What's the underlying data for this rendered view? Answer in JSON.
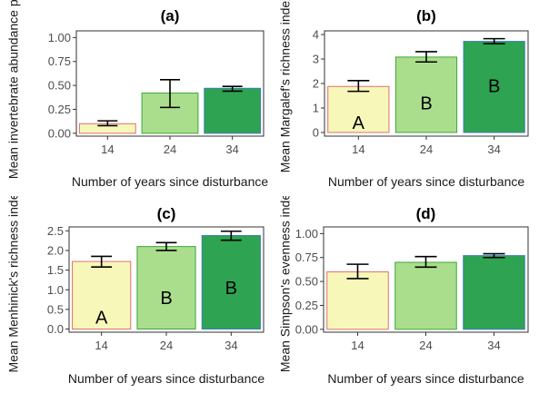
{
  "colors": {
    "c14": "#f7f7b9",
    "c24": "#aade8c",
    "c34": "#2ea351",
    "border14": "#e07070",
    "border24": "#3aa83a",
    "border34": "#3a7fb8"
  },
  "chart_data": [
    {
      "type": "bar",
      "title": "(a)",
      "xlabel": "Number of years since disturbance",
      "ylabel": "Mean invertebrate abundance per",
      "categories": [
        "14",
        "24",
        "34"
      ],
      "values": [
        0.1,
        0.42,
        0.47
      ],
      "error_low": [
        0.08,
        0.27,
        0.44
      ],
      "error_high": [
        0.13,
        0.56,
        0.49
      ],
      "ylim": [
        -0.03,
        1.07
      ],
      "yticks": [
        0.0,
        0.25,
        0.5,
        0.75,
        1.0
      ],
      "ytick_labels": [
        "0.00",
        "0.25",
        "0.50",
        "0.75",
        "1.00"
      ],
      "letters": [
        "",
        "",
        ""
      ]
    },
    {
      "type": "bar",
      "title": "(b)",
      "xlabel": "Number of years since disturbance",
      "ylabel": "Mean Margalef's richness index",
      "categories": [
        "14",
        "24",
        "34"
      ],
      "values": [
        1.88,
        3.08,
        3.72
      ],
      "error_low": [
        1.68,
        2.88,
        3.63
      ],
      "error_high": [
        2.12,
        3.3,
        3.83
      ],
      "ylim": [
        -0.15,
        4.15
      ],
      "yticks": [
        0,
        1,
        2,
        3,
        4
      ],
      "ytick_labels": [
        "0",
        "1",
        "2",
        "3",
        "4"
      ],
      "letters": [
        "A",
        "B",
        "B"
      ],
      "letter_y": [
        0.4,
        1.2,
        1.9
      ]
    },
    {
      "type": "bar",
      "title": "(c)",
      "xlabel": "Number of years since disturbance",
      "ylabel": "Mean Menhinick's richness index",
      "categories": [
        "14",
        "24",
        "34"
      ],
      "values": [
        1.72,
        2.1,
        2.38
      ],
      "error_low": [
        1.58,
        2.0,
        2.26
      ],
      "error_high": [
        1.85,
        2.2,
        2.49
      ],
      "ylim": [
        -0.08,
        2.6
      ],
      "yticks": [
        0.0,
        0.5,
        1.0,
        1.5,
        2.0,
        2.5
      ],
      "ytick_labels": [
        "0.0",
        "0.5",
        "1.0",
        "1.5",
        "2.0",
        "2.5"
      ],
      "letters": [
        "A",
        "B",
        "B"
      ],
      "letter_y": [
        0.3,
        0.8,
        1.05
      ]
    },
    {
      "type": "bar",
      "title": "(d)",
      "xlabel": "Number of years since disturbance",
      "ylabel": "Mean Simpson's evenness index",
      "categories": [
        "14",
        "24",
        "34"
      ],
      "values": [
        0.6,
        0.7,
        0.77
      ],
      "error_low": [
        0.53,
        0.65,
        0.75
      ],
      "error_high": [
        0.68,
        0.76,
        0.79
      ],
      "ylim": [
        -0.03,
        1.07
      ],
      "yticks": [
        0.0,
        0.25,
        0.5,
        0.75,
        1.0
      ],
      "ytick_labels": [
        "0.00",
        "0.25",
        "0.50",
        "0.75",
        "1.00"
      ],
      "letters": [
        "",
        "",
        ""
      ]
    }
  ]
}
